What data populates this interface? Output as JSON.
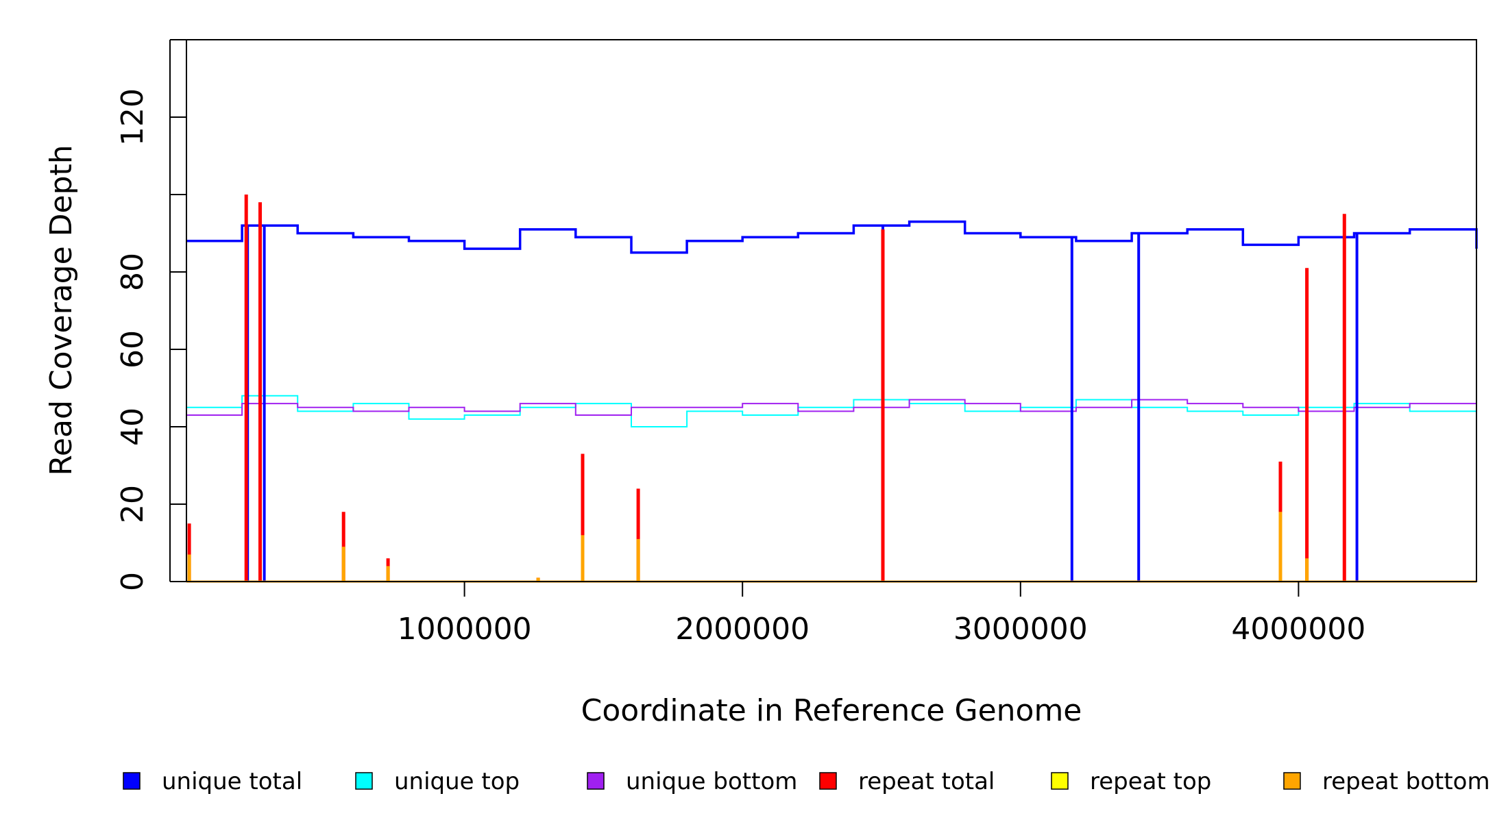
{
  "chart_data": {
    "type": "line",
    "title": "",
    "xlabel": "Coordinate in Reference Genome",
    "ylabel": "Read Coverage Depth",
    "xlim": [
      0,
      4640000
    ],
    "ylim": [
      0,
      140
    ],
    "x_ticks": [
      1000000,
      2000000,
      3000000,
      4000000
    ],
    "y_ticks": [
      0,
      20,
      40,
      60,
      80,
      100,
      120,
      140
    ],
    "y_tick_labels": [
      "0",
      "20",
      "40",
      "60",
      "80",
      "",
      "120",
      ""
    ],
    "grid": false,
    "legend_position": "bottom",
    "series_style": "step",
    "series": [
      {
        "name": "unique top",
        "color": "#00FFFF",
        "x": [
          0,
          200000,
          400000,
          600000,
          800000,
          1000000,
          1200000,
          1400000,
          1600000,
          1800000,
          2000000,
          2200000,
          2400000,
          2600000,
          2800000,
          3000000,
          3200000,
          3400000,
          3600000,
          3800000,
          4000000,
          4200000,
          4400000,
          4640000
        ],
        "values": [
          45,
          48,
          44,
          46,
          42,
          43,
          45,
          46,
          40,
          44,
          43,
          45,
          47,
          46,
          44,
          45,
          47,
          45,
          44,
          43,
          45,
          46,
          44,
          42
        ]
      },
      {
        "name": "unique bottom",
        "color": "#A020F0",
        "x": [
          0,
          200000,
          400000,
          600000,
          800000,
          1000000,
          1200000,
          1400000,
          1600000,
          1800000,
          2000000,
          2200000,
          2400000,
          2600000,
          2800000,
          3000000,
          3200000,
          3400000,
          3600000,
          3800000,
          4000000,
          4200000,
          4400000,
          4640000
        ],
        "values": [
          43,
          46,
          45,
          44,
          45,
          44,
          46,
          43,
          45,
          45,
          46,
          44,
          45,
          47,
          46,
          44,
          45,
          47,
          46,
          45,
          44,
          45,
          46,
          44
        ]
      },
      {
        "name": "unique total",
        "color": "#0000FF",
        "x": [
          0,
          200000,
          400000,
          600000,
          800000,
          1000000,
          1200000,
          1400000,
          1600000,
          1800000,
          2000000,
          2200000,
          2400000,
          2600000,
          2800000,
          3000000,
          3200000,
          3400000,
          3600000,
          3800000,
          4000000,
          4200000,
          4400000,
          4640000
        ],
        "values": [
          88,
          92,
          90,
          89,
          88,
          86,
          91,
          89,
          85,
          88,
          89,
          90,
          92,
          93,
          90,
          89,
          88,
          90,
          91,
          87,
          89,
          90,
          91,
          86
        ]
      },
      {
        "name": "repeat total",
        "color": "#FF0000",
        "x": [
          10000,
          215000,
          265000,
          565000,
          725000,
          1265000,
          1425000,
          1625000,
          2505000,
          3935000,
          4030000,
          4165000
        ],
        "values": [
          15,
          100,
          98,
          18,
          6,
          1,
          33,
          24,
          91,
          31,
          81,
          95
        ]
      },
      {
        "name": "repeat top",
        "color": "#FFFF00",
        "x": [],
        "values": []
      },
      {
        "name": "repeat bottom",
        "color": "#FFA500",
        "x": [
          10000,
          565000,
          725000,
          1265000,
          1425000,
          1625000,
          3935000,
          4030000
        ],
        "values": [
          7,
          9,
          4,
          1,
          12,
          11,
          18,
          6
        ]
      }
    ],
    "dropouts": {
      "x": [
        220000,
        265000,
        280000,
        2505000,
        3185000,
        3425000,
        4165000,
        4210000
      ],
      "values": [
        0,
        0,
        0,
        0,
        0,
        0,
        0,
        0
      ]
    }
  },
  "legend": {
    "items": [
      {
        "label": "unique total",
        "color": "#0000FF"
      },
      {
        "label": "unique top",
        "color": "#00FFFF"
      },
      {
        "label": "unique bottom",
        "color": "#A020F0"
      },
      {
        "label": "repeat total",
        "color": "#FF0000"
      },
      {
        "label": "repeat top",
        "color": "#FFFF00"
      },
      {
        "label": "repeat bottom",
        "color": "#FFA500"
      }
    ]
  }
}
